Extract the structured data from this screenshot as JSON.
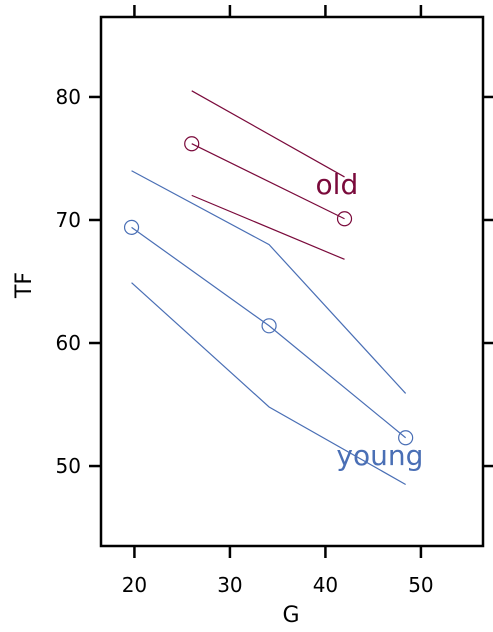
{
  "chart_data": {
    "type": "line",
    "xlabel": "G",
    "ylabel": "TF",
    "xlim": [
      16.5,
      56.5
    ],
    "ylim": [
      43.5,
      86.5
    ],
    "xticks": [
      "20",
      "30",
      "40",
      "50"
    ],
    "yticks": [
      "50",
      "60",
      "70",
      "80"
    ],
    "grid": false,
    "series": [
      {
        "name": "old",
        "color": "#7a0a3b",
        "center": {
          "x": [
            26,
            42
          ],
          "y": [
            76.2,
            70.1
          ]
        },
        "upper": {
          "x": [
            26,
            42
          ],
          "y": [
            80.5,
            73.5
          ]
        },
        "lower": {
          "x": [
            26,
            42
          ],
          "y": [
            72,
            66.8
          ]
        }
      },
      {
        "name": "young",
        "color": "#4a6fb5",
        "center": {
          "x": [
            19.7,
            34.1,
            48.4
          ],
          "y": [
            69.4,
            61.4,
            52.3
          ]
        },
        "upper": {
          "x": [
            19.7,
            34.1,
            48.4
          ],
          "y": [
            74,
            68,
            55.9
          ]
        },
        "lower": {
          "x": [
            19.7,
            34.1,
            48.4
          ],
          "y": [
            64.9,
            54.8,
            48.5
          ]
        }
      }
    ],
    "labels": [
      {
        "series": "old",
        "text": "old",
        "x": 41.2,
        "y": 72.1
      },
      {
        "series": "young",
        "text": "young",
        "x": 45.7,
        "y": 50.1
      }
    ]
  }
}
